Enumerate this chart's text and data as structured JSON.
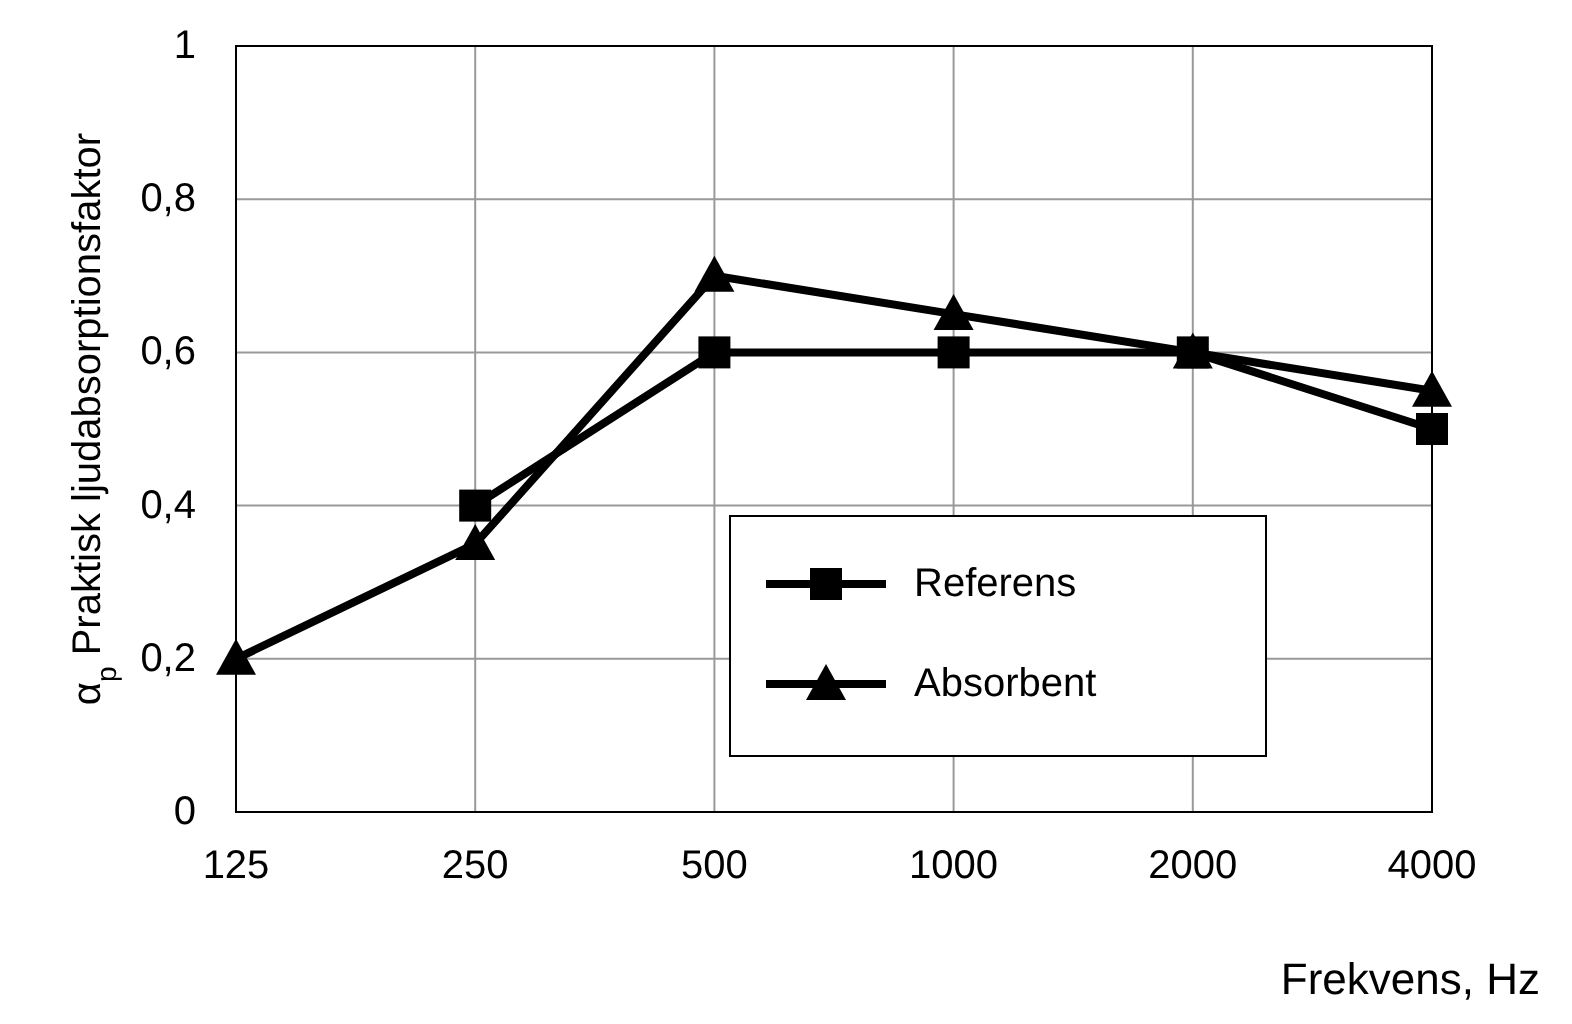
{
  "chart_data": {
    "type": "line",
    "xlabel": "Frekvens, Hz",
    "ylabel": "α$_{p}$ Praktisk ljudabsorptionsfaktor",
    "categories": [
      "125",
      "250",
      "500",
      "1000",
      "2000",
      "4000"
    ],
    "ylim": [
      0,
      1
    ],
    "yticks": [
      0,
      {
        "value": 0.2,
        "label": "0,2"
      },
      {
        "value": 0.4,
        "label": "0,4"
      },
      {
        "value": 0.6,
        "label": "0,6"
      },
      {
        "value": 0.8,
        "label": "0,8"
      },
      1
    ],
    "grid": true,
    "legend": "bottom right",
    "line_style": "solid",
    "series": [
      {
        "name": "Referens",
        "color": "#000000",
        "marker": "square",
        "values": [
          null,
          0.4,
          0.6,
          0.6,
          0.6,
          0.5
        ]
      },
      {
        "name": "Absorbent",
        "color": "#000000",
        "marker": "triangle",
        "values": [
          0.2,
          0.35,
          0.7,
          0.65,
          0.6,
          0.55
        ]
      }
    ]
  }
}
